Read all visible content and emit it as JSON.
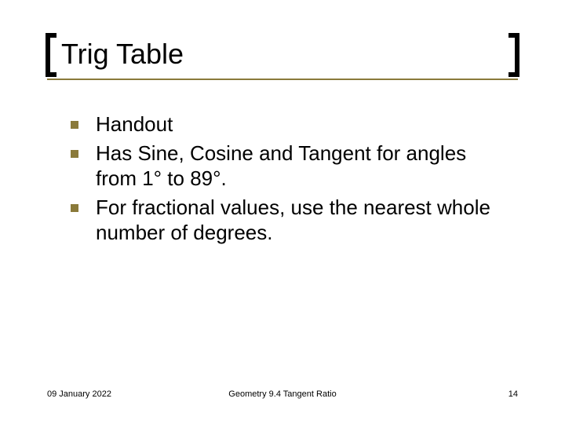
{
  "title": "Trig Table",
  "bullets": [
    "Handout",
    "Has Sine, Cosine and Tangent for angles from 1° to 89°.",
    "For fractional values, use the nearest whole number of degrees."
  ],
  "footer": {
    "date": "09 January 2022",
    "center": "Geometry 9.4 Tangent Ratio",
    "page": "14"
  },
  "colors": {
    "accent": "#8a7a3a",
    "bracket": "#000000",
    "text": "#000000",
    "background": "#ffffff"
  }
}
